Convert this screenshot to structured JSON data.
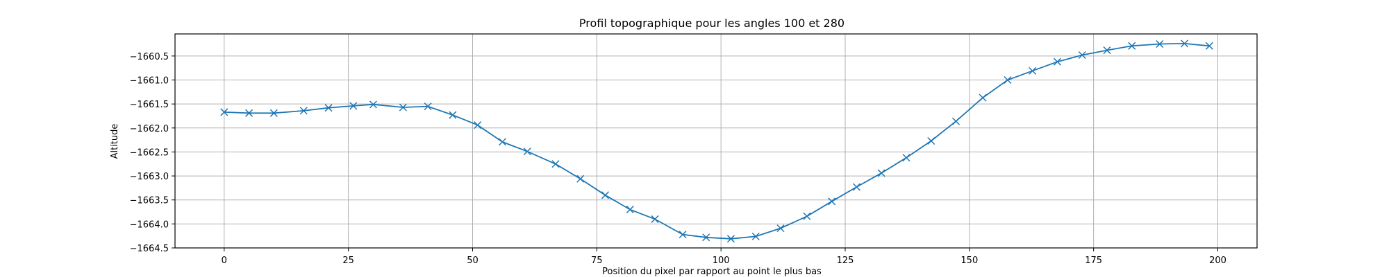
{
  "chart_data": {
    "type": "line",
    "title": "Profil topographique pour les angles 100 et 280",
    "xlabel": "Position du pixel par rapport au point le plus bas",
    "ylabel": "Altitude",
    "xlim": [
      -9.9,
      207.9
    ],
    "ylim": [
      -1664.5,
      -1660.04
    ],
    "xticks": [
      0,
      25,
      50,
      75,
      100,
      125,
      150,
      175,
      200
    ],
    "yticks": [
      -1664.5,
      -1664.0,
      -1663.5,
      -1663.0,
      -1662.5,
      -1662.0,
      -1661.5,
      -1661.0,
      -1660.5
    ],
    "xtick_labels": [
      "0",
      "25",
      "50",
      "75",
      "100",
      "125",
      "150",
      "175",
      "200"
    ],
    "ytick_labels": [
      "−1664.5",
      "−1664.0",
      "−1663.5",
      "−1663.0",
      "−1662.5",
      "−1662.0",
      "−1661.5",
      "−1661.0",
      "−1660.5"
    ],
    "grid": true,
    "marker": "x",
    "color": "#1f77b4",
    "series": [
      {
        "x": [
          0,
          5,
          10,
          16,
          21,
          26,
          30,
          36,
          41,
          46,
          51,
          56,
          61,
          66.7,
          71.7,
          76.7,
          81.7,
          86.7,
          92.3,
          97,
          102,
          107,
          112,
          117.3,
          122.3,
          127.3,
          132.3,
          137.3,
          142.3,
          147.3,
          152.7,
          157.7,
          162.7,
          167.7,
          172.7,
          177.7,
          182.7,
          188.3,
          193.3,
          198.3
        ],
        "y": [
          -1661.67,
          -1661.69,
          -1661.69,
          -1661.64,
          -1661.58,
          -1661.54,
          -1661.51,
          -1661.57,
          -1661.55,
          -1661.73,
          -1661.94,
          -1662.29,
          -1662.49,
          -1662.75,
          -1663.06,
          -1663.4,
          -1663.7,
          -1663.9,
          -1664.22,
          -1664.28,
          -1664.31,
          -1664.26,
          -1664.09,
          -1663.84,
          -1663.53,
          -1663.23,
          -1662.94,
          -1662.62,
          -1662.27,
          -1661.86,
          -1661.37,
          -1661.0,
          -1660.81,
          -1660.62,
          -1660.48,
          -1660.38,
          -1660.29,
          -1660.25,
          -1660.24,
          -1660.29
        ]
      }
    ]
  }
}
